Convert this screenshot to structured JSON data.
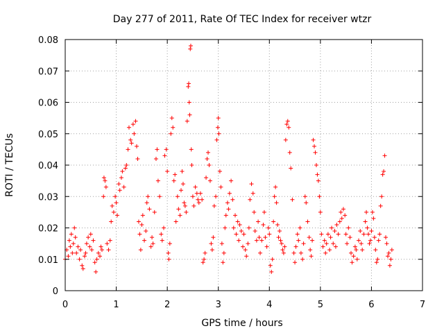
{
  "chart_data": {
    "type": "scatter",
    "title": "Day 277 of 2011, Rate Of TEC Index for receiver wtzr",
    "xlabel": "GPS time / hours",
    "ylabel": "ROTI / TECUs",
    "xlim": [
      0,
      7
    ],
    "ylim": [
      0,
      0.08
    ],
    "xticks": [
      "0",
      "1",
      "2",
      "3",
      "4",
      "5",
      "6",
      "7"
    ],
    "yticks": [
      "0",
      "0.01",
      "0.02",
      "0.03",
      "0.04",
      "0.05",
      "0.06",
      "0.07",
      "0.08"
    ],
    "grid": true,
    "marker": "plus",
    "color": "#ff0000",
    "series": [
      {
        "name": "ROTI",
        "points": [
          [
            0.0,
            0.01
          ],
          [
            0.03,
            0.013
          ],
          [
            0.06,
            0.011
          ],
          [
            0.08,
            0.016
          ],
          [
            0.1,
            0.014
          ],
          [
            0.12,
            0.018
          ],
          [
            0.14,
            0.012
          ],
          [
            0.16,
            0.015
          ],
          [
            0.18,
            0.02
          ],
          [
            0.2,
            0.017
          ],
          [
            0.22,
            0.012
          ],
          [
            0.25,
            0.014
          ],
          [
            0.28,
            0.01
          ],
          [
            0.3,
            0.013
          ],
          [
            0.33,
            0.008
          ],
          [
            0.35,
            0.007
          ],
          [
            0.38,
            0.011
          ],
          [
            0.4,
            0.012
          ],
          [
            0.42,
            0.015
          ],
          [
            0.45,
            0.017
          ],
          [
            0.48,
            0.014
          ],
          [
            0.5,
            0.018
          ],
          [
            0.52,
            0.013
          ],
          [
            0.55,
            0.016
          ],
          [
            0.58,
            0.009
          ],
          [
            0.6,
            0.006
          ],
          [
            0.62,
            0.01
          ],
          [
            0.65,
            0.012
          ],
          [
            0.68,
            0.011
          ],
          [
            0.7,
            0.014
          ],
          [
            0.72,
            0.013
          ],
          [
            0.75,
            0.03
          ],
          [
            0.76,
            0.036
          ],
          [
            0.78,
            0.035
          ],
          [
            0.8,
            0.033
          ],
          [
            0.82,
            0.015
          ],
          [
            0.85,
            0.013
          ],
          [
            0.88,
            0.016
          ],
          [
            0.9,
            0.022
          ],
          [
            0.92,
            0.027
          ],
          [
            0.95,
            0.025
          ],
          [
            0.98,
            0.03
          ],
          [
            1.0,
            0.028
          ],
          [
            1.02,
            0.024
          ],
          [
            1.05,
            0.034
          ],
          [
            1.07,
            0.032
          ],
          [
            1.1,
            0.036
          ],
          [
            1.12,
            0.038
          ],
          [
            1.15,
            0.033
          ],
          [
            1.18,
            0.039
          ],
          [
            1.2,
            0.04
          ],
          [
            1.23,
            0.045
          ],
          [
            1.25,
            0.052
          ],
          [
            1.28,
            0.048
          ],
          [
            1.3,
            0.047
          ],
          [
            1.33,
            0.053
          ],
          [
            1.35,
            0.05
          ],
          [
            1.38,
            0.054
          ],
          [
            1.4,
            0.046
          ],
          [
            1.42,
            0.042
          ],
          [
            1.44,
            0.022
          ],
          [
            1.46,
            0.018
          ],
          [
            1.48,
            0.013
          ],
          [
            1.5,
            0.021
          ],
          [
            1.52,
            0.024
          ],
          [
            1.55,
            0.016
          ],
          [
            1.58,
            0.019
          ],
          [
            1.6,
            0.028
          ],
          [
            1.62,
            0.03
          ],
          [
            1.65,
            0.026
          ],
          [
            1.68,
            0.014
          ],
          [
            1.7,
            0.017
          ],
          [
            1.72,
            0.015
          ],
          [
            1.75,
            0.025
          ],
          [
            1.78,
            0.042
          ],
          [
            1.8,
            0.045
          ],
          [
            1.82,
            0.035
          ],
          [
            1.85,
            0.03
          ],
          [
            1.88,
            0.018
          ],
          [
            1.9,
            0.016
          ],
          [
            1.93,
            0.02
          ],
          [
            1.95,
            0.043
          ],
          [
            1.98,
            0.045
          ],
          [
            2.0,
            0.038
          ],
          [
            2.02,
            0.012
          ],
          [
            2.03,
            0.01
          ],
          [
            2.05,
            0.015
          ],
          [
            2.07,
            0.05
          ],
          [
            2.09,
            0.055
          ],
          [
            2.11,
            0.052
          ],
          [
            2.13,
            0.035
          ],
          [
            2.15,
            0.037
          ],
          [
            2.17,
            0.022
          ],
          [
            2.2,
            0.03
          ],
          [
            2.22,
            0.026
          ],
          [
            2.25,
            0.024
          ],
          [
            2.27,
            0.032
          ],
          [
            2.29,
            0.038
          ],
          [
            2.31,
            0.034
          ],
          [
            2.33,
            0.028
          ],
          [
            2.35,
            0.027
          ],
          [
            2.37,
            0.025
          ],
          [
            2.39,
            0.054
          ],
          [
            2.41,
            0.065
          ],
          [
            2.42,
            0.066
          ],
          [
            2.43,
            0.06
          ],
          [
            2.44,
            0.056
          ],
          [
            2.45,
            0.077
          ],
          [
            2.46,
            0.078
          ],
          [
            2.47,
            0.045
          ],
          [
            2.48,
            0.04
          ],
          [
            2.5,
            0.03
          ],
          [
            2.52,
            0.027
          ],
          [
            2.55,
            0.033
          ],
          [
            2.58,
            0.031
          ],
          [
            2.6,
            0.029
          ],
          [
            2.62,
            0.028
          ],
          [
            2.65,
            0.031
          ],
          [
            2.68,
            0.029
          ],
          [
            2.7,
            0.009
          ],
          [
            2.72,
            0.01
          ],
          [
            2.74,
            0.012
          ],
          [
            2.76,
            0.036
          ],
          [
            2.78,
            0.042
          ],
          [
            2.8,
            0.044
          ],
          [
            2.82,
            0.04
          ],
          [
            2.84,
            0.035
          ],
          [
            2.86,
            0.015
          ],
          [
            2.88,
            0.013
          ],
          [
            2.9,
            0.017
          ],
          [
            2.92,
            0.027
          ],
          [
            2.95,
            0.03
          ],
          [
            2.97,
            0.048
          ],
          [
            2.99,
            0.052
          ],
          [
            3.0,
            0.055
          ],
          [
            3.01,
            0.05
          ],
          [
            3.03,
            0.038
          ],
          [
            3.05,
            0.033
          ],
          [
            3.07,
            0.015
          ],
          [
            3.09,
            0.009
          ],
          [
            3.11,
            0.012
          ],
          [
            3.13,
            0.02
          ],
          [
            3.15,
            0.024
          ],
          [
            3.18,
            0.028
          ],
          [
            3.2,
            0.026
          ],
          [
            3.22,
            0.031
          ],
          [
            3.25,
            0.035
          ],
          [
            3.28,
            0.029
          ],
          [
            3.3,
            0.02
          ],
          [
            3.33,
            0.024
          ],
          [
            3.35,
            0.018
          ],
          [
            3.38,
            0.022
          ],
          [
            3.4,
            0.016
          ],
          [
            3.42,
            0.021
          ],
          [
            3.45,
            0.019
          ],
          [
            3.48,
            0.014
          ],
          [
            3.5,
            0.018
          ],
          [
            3.53,
            0.013
          ],
          [
            3.55,
            0.011
          ],
          [
            3.58,
            0.015
          ],
          [
            3.6,
            0.02
          ],
          [
            3.62,
            0.029
          ],
          [
            3.65,
            0.034
          ],
          [
            3.68,
            0.031
          ],
          [
            3.7,
            0.025
          ],
          [
            3.72,
            0.019
          ],
          [
            3.75,
            0.016
          ],
          [
            3.78,
            0.022
          ],
          [
            3.8,
            0.017
          ],
          [
            3.82,
            0.012
          ],
          [
            3.85,
            0.016
          ],
          [
            3.88,
            0.021
          ],
          [
            3.9,
            0.025
          ],
          [
            3.92,
            0.017
          ],
          [
            3.95,
            0.014
          ],
          [
            3.98,
            0.02
          ],
          [
            4.0,
            0.018
          ],
          [
            4.02,
            0.008
          ],
          [
            4.04,
            0.006
          ],
          [
            4.06,
            0.01
          ],
          [
            4.08,
            0.022
          ],
          [
            4.1,
            0.03
          ],
          [
            4.12,
            0.033
          ],
          [
            4.14,
            0.028
          ],
          [
            4.16,
            0.021
          ],
          [
            4.18,
            0.017
          ],
          [
            4.2,
            0.019
          ],
          [
            4.22,
            0.016
          ],
          [
            4.24,
            0.015
          ],
          [
            4.26,
            0.013
          ],
          [
            4.28,
            0.012
          ],
          [
            4.3,
            0.014
          ],
          [
            4.32,
            0.048
          ],
          [
            4.34,
            0.053
          ],
          [
            4.36,
            0.054
          ],
          [
            4.38,
            0.052
          ],
          [
            4.4,
            0.044
          ],
          [
            4.42,
            0.039
          ],
          [
            4.45,
            0.029
          ],
          [
            4.48,
            0.012
          ],
          [
            4.5,
            0.009
          ],
          [
            4.52,
            0.014
          ],
          [
            4.55,
            0.018
          ],
          [
            4.57,
            0.016
          ],
          [
            4.6,
            0.02
          ],
          [
            4.62,
            0.012
          ],
          [
            4.65,
            0.01
          ],
          [
            4.67,
            0.015
          ],
          [
            4.7,
            0.03
          ],
          [
            4.72,
            0.028
          ],
          [
            4.75,
            0.022
          ],
          [
            4.78,
            0.017
          ],
          [
            4.8,
            0.013
          ],
          [
            4.82,
            0.011
          ],
          [
            4.84,
            0.016
          ],
          [
            4.86,
            0.048
          ],
          [
            4.88,
            0.046
          ],
          [
            4.9,
            0.044
          ],
          [
            4.92,
            0.04
          ],
          [
            4.94,
            0.037
          ],
          [
            4.96,
            0.035
          ],
          [
            4.98,
            0.03
          ],
          [
            5.0,
            0.025
          ],
          [
            5.02,
            0.018
          ],
          [
            5.05,
            0.014
          ],
          [
            5.08,
            0.016
          ],
          [
            5.1,
            0.012
          ],
          [
            5.12,
            0.015
          ],
          [
            5.15,
            0.018
          ],
          [
            5.18,
            0.013
          ],
          [
            5.2,
            0.017
          ],
          [
            5.22,
            0.02
          ],
          [
            5.25,
            0.015
          ],
          [
            5.28,
            0.019
          ],
          [
            5.3,
            0.014
          ],
          [
            5.32,
            0.021
          ],
          [
            5.35,
            0.018
          ],
          [
            5.38,
            0.022
          ],
          [
            5.4,
            0.025
          ],
          [
            5.42,
            0.023
          ],
          [
            5.45,
            0.026
          ],
          [
            5.48,
            0.024
          ],
          [
            5.5,
            0.018
          ],
          [
            5.52,
            0.015
          ],
          [
            5.55,
            0.02
          ],
          [
            5.58,
            0.017
          ],
          [
            5.6,
            0.012
          ],
          [
            5.62,
            0.009
          ],
          [
            5.65,
            0.011
          ],
          [
            5.68,
            0.014
          ],
          [
            5.7,
            0.013
          ],
          [
            5.72,
            0.01
          ],
          [
            5.75,
            0.016
          ],
          [
            5.78,
            0.019
          ],
          [
            5.8,
            0.015
          ],
          [
            5.82,
            0.013
          ],
          [
            5.85,
            0.018
          ],
          [
            5.88,
            0.022
          ],
          [
            5.9,
            0.025
          ],
          [
            5.92,
            0.02
          ],
          [
            5.94,
            0.018
          ],
          [
            5.96,
            0.015
          ],
          [
            5.98,
            0.016
          ],
          [
            6.0,
            0.019
          ],
          [
            6.02,
            0.025
          ],
          [
            6.04,
            0.023
          ],
          [
            6.06,
            0.017
          ],
          [
            6.08,
            0.013
          ],
          [
            6.1,
            0.009
          ],
          [
            6.12,
            0.01
          ],
          [
            6.14,
            0.016
          ],
          [
            6.16,
            0.018
          ],
          [
            6.18,
            0.027
          ],
          [
            6.2,
            0.03
          ],
          [
            6.22,
            0.037
          ],
          [
            6.24,
            0.038
          ],
          [
            6.26,
            0.043
          ],
          [
            6.28,
            0.017
          ],
          [
            6.3,
            0.015
          ],
          [
            6.32,
            0.011
          ],
          [
            6.34,
            0.012
          ],
          [
            6.36,
            0.008
          ],
          [
            6.38,
            0.01
          ],
          [
            6.4,
            0.013
          ]
        ]
      }
    ]
  }
}
